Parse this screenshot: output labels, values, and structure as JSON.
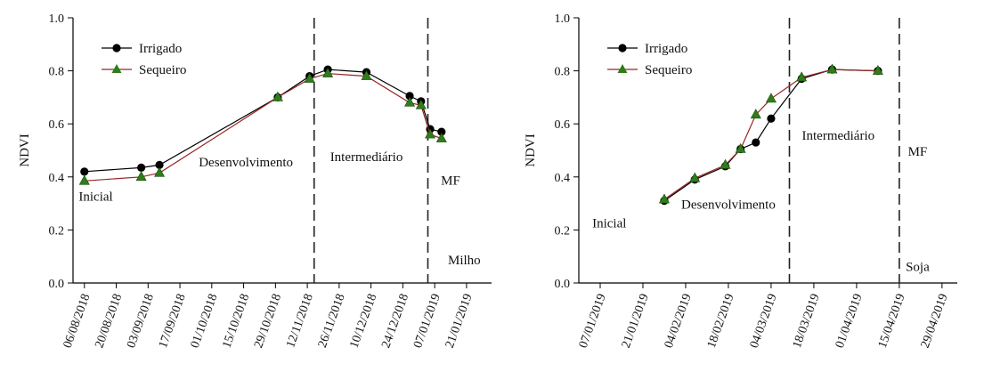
{
  "colors": {
    "irrigado": "#000000",
    "sequeiro": "#2e7d1a",
    "sequeiro_line": "#9a2424",
    "axis": "#000000"
  },
  "chart_data": [
    {
      "type": "line",
      "crop_label": "Milho",
      "ylabel": "NDVI",
      "ylim": [
        0.0,
        1.0
      ],
      "yticks": [
        "0.0",
        "0.2",
        "0.4",
        "0.6",
        "0.8",
        "1.0"
      ],
      "xlim": [
        "2018-08-01",
        "2019-02-01"
      ],
      "xticks": [
        "06/08/2018",
        "20/08/2018",
        "03/09/2018",
        "17/09/2018",
        "01/10/2018",
        "15/10/2018",
        "29/10/2018",
        "12/11/2018",
        "26/11/2018",
        "10/12/2018",
        "24/12/2018",
        "07/01/2019",
        "21/01/2019"
      ],
      "legend": {
        "position": "top-left",
        "entries": [
          "Irrigado",
          "Sequeiro"
        ]
      },
      "phase_boundaries": [
        "2018-11-15",
        "2019-01-04"
      ],
      "phase_labels": [
        {
          "text": "Inicial",
          "x": "2018-08-11",
          "y": 0.31
        },
        {
          "text": "Desenvolvimento",
          "x": "2018-10-16",
          "y": 0.44
        },
        {
          "text": "Intermediário",
          "x": "2018-12-08",
          "y": 0.46
        },
        {
          "text": "MF",
          "x": "2019-01-14",
          "y": 0.37
        },
        {
          "text": "Milho",
          "x": "2019-01-20",
          "y": 0.07
        }
      ],
      "series": [
        {
          "name": "Irrigado",
          "marker": "circle",
          "x": [
            "2018-08-06",
            "2018-08-31",
            "2018-09-08",
            "2018-10-30",
            "2018-11-13",
            "2018-11-21",
            "2018-12-08",
            "2018-12-27",
            "2019-01-01",
            "2019-01-05",
            "2019-01-10"
          ],
          "y": [
            0.42,
            0.435,
            0.445,
            0.7,
            0.78,
            0.805,
            0.795,
            0.705,
            0.685,
            0.58,
            0.57
          ]
        },
        {
          "name": "Sequeiro",
          "marker": "triangle",
          "x": [
            "2018-08-06",
            "2018-08-31",
            "2018-09-08",
            "2018-10-30",
            "2018-11-13",
            "2018-11-21",
            "2018-12-08",
            "2018-12-27",
            "2019-01-01",
            "2019-01-05",
            "2019-01-10"
          ],
          "y": [
            0.385,
            0.4,
            0.415,
            0.7,
            0.77,
            0.79,
            0.78,
            0.68,
            0.67,
            0.56,
            0.545
          ]
        }
      ]
    },
    {
      "type": "line",
      "crop_label": "Soja",
      "ylabel": "NDVI",
      "ylim": [
        0.0,
        1.0
      ],
      "yticks": [
        "0.0",
        "0.2",
        "0.4",
        "0.6",
        "0.8",
        "1.0"
      ],
      "xlim": [
        "2018-12-31",
        "2019-05-04"
      ],
      "xticks": [
        "07/01/2019",
        "21/01/2019",
        "04/02/2019",
        "18/02/2019",
        "04/03/2019",
        "18/03/2019",
        "01/04/2019",
        "15/04/2019",
        "29/04/2019"
      ],
      "legend": {
        "position": "top-left",
        "entries": [
          "Irrigado",
          "Sequeiro"
        ]
      },
      "phase_boundaries": [
        "2019-03-10",
        "2019-04-15"
      ],
      "phase_labels": [
        {
          "text": "Inicial",
          "x": "2019-01-10",
          "y": 0.21
        },
        {
          "text": "Desenvolvimento",
          "x": "2019-02-18",
          "y": 0.28
        },
        {
          "text": "Intermediário",
          "x": "2019-03-26",
          "y": 0.54
        },
        {
          "text": "MF",
          "x": "2019-04-21",
          "y": 0.48
        },
        {
          "text": "Soja",
          "x": "2019-04-21",
          "y": 0.045
        }
      ],
      "series": [
        {
          "name": "Irrigado",
          "marker": "circle",
          "x": [
            "2019-01-28",
            "2019-02-07",
            "2019-02-17",
            "2019-02-22",
            "2019-02-27",
            "2019-03-04",
            "2019-03-14",
            "2019-03-24",
            "2019-04-08"
          ],
          "y": [
            0.31,
            0.39,
            0.44,
            0.505,
            0.53,
            0.62,
            0.77,
            0.805,
            0.8
          ]
        },
        {
          "name": "Sequeiro",
          "marker": "triangle",
          "x": [
            "2019-01-28",
            "2019-02-07",
            "2019-02-17",
            "2019-02-22",
            "2019-02-27",
            "2019-03-04",
            "2019-03-14",
            "2019-03-24",
            "2019-04-08"
          ],
          "y": [
            0.315,
            0.395,
            0.445,
            0.505,
            0.635,
            0.695,
            0.775,
            0.805,
            0.8
          ]
        }
      ]
    }
  ]
}
